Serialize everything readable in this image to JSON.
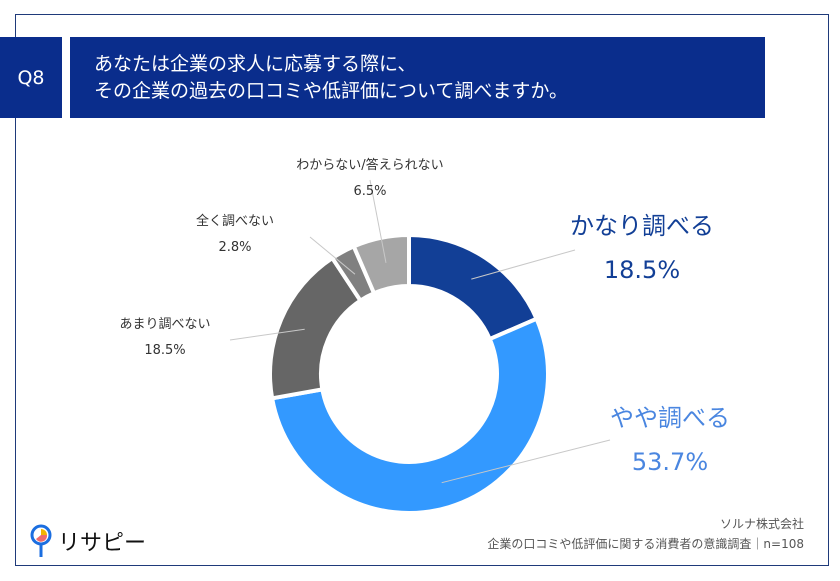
{
  "question": {
    "number": "Q8",
    "line1": "あなたは企業の求人に応募する際に、",
    "line2": "その企業の過去の口コミや低評価について調べますか。"
  },
  "chart_data": {
    "type": "donut",
    "categories": [
      "かなり調べる",
      "やや調べる",
      "あまり調べない",
      "全く調べない",
      "わからない/答えられない"
    ],
    "values": [
      18.5,
      53.7,
      18.5,
      2.8,
      6.5
    ],
    "value_labels": [
      "18.5%",
      "53.7%",
      "18.5%",
      "2.8%",
      "6.5%"
    ],
    "colors": [
      "#123f96",
      "#3399ff",
      "#666666",
      "#808080",
      "#a6a6a6"
    ],
    "start": "top",
    "direction": "clockwise"
  },
  "footer": {
    "company": "ソルナ株式会社",
    "survey": "企業の口コミや低評価に関する消費者の意識調査｜n=108"
  },
  "logo": {
    "text": "リサピー"
  }
}
